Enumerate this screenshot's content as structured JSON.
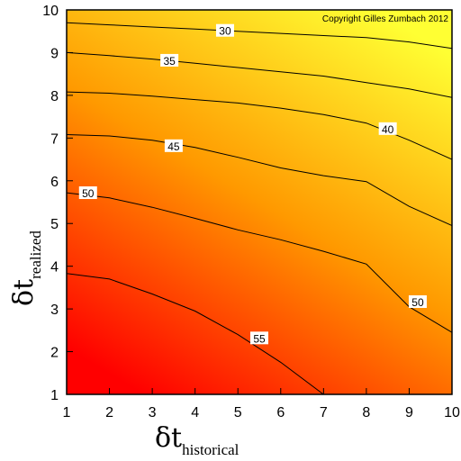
{
  "chart_data": {
    "type": "heatmap",
    "subtype": "contour",
    "copyright": "Copyright Gilles Zumbach 2012",
    "xlabel": {
      "symbol": "δt",
      "subscript": "historical"
    },
    "ylabel": {
      "symbol": "δt",
      "subscript": "realized"
    },
    "xlim": [
      1,
      10
    ],
    "ylim": [
      1,
      10
    ],
    "x_ticks": [
      "1",
      "2",
      "3",
      "4",
      "5",
      "6",
      "7",
      "8",
      "9",
      "10"
    ],
    "y_ticks": [
      "1",
      "2",
      "3",
      "4",
      "5",
      "6",
      "7",
      "8",
      "9",
      "10"
    ],
    "colorscale": {
      "low": "#ff0000",
      "mid": "#ff9900",
      "high": "#ffff33"
    },
    "contours": [
      {
        "level": "30",
        "points": [
          [
            1,
            9.7
          ],
          [
            2,
            9.65
          ],
          [
            3,
            9.6
          ],
          [
            4,
            9.55
          ],
          [
            5,
            9.5
          ],
          [
            6,
            9.45
          ],
          [
            7,
            9.4
          ],
          [
            8,
            9.35
          ],
          [
            9,
            9.25
          ],
          [
            10,
            9.1
          ]
        ],
        "label_at": [
          4.7,
          9.5
        ]
      },
      {
        "level": "35",
        "points": [
          [
            1,
            9.0
          ],
          [
            2,
            8.93
          ],
          [
            3,
            8.85
          ],
          [
            4,
            8.75
          ],
          [
            5,
            8.65
          ],
          [
            6,
            8.55
          ],
          [
            7,
            8.45
          ],
          [
            8,
            8.3
          ],
          [
            9,
            8.15
          ],
          [
            10,
            7.95
          ]
        ],
        "label_at": [
          3.4,
          8.8
        ]
      },
      {
        "level": "40",
        "points": [
          [
            1,
            8.08
          ],
          [
            2,
            8.05
          ],
          [
            3,
            7.98
          ],
          [
            4,
            7.9
          ],
          [
            5,
            7.82
          ],
          [
            6,
            7.7
          ],
          [
            7,
            7.55
          ],
          [
            8,
            7.35
          ],
          [
            9,
            6.95
          ],
          [
            10,
            6.5
          ]
        ],
        "label_at": [
          8.5,
          7.2
        ]
      },
      {
        "level": "45",
        "points": [
          [
            1,
            7.08
          ],
          [
            2,
            7.05
          ],
          [
            3,
            6.95
          ],
          [
            4,
            6.78
          ],
          [
            5,
            6.55
          ],
          [
            6,
            6.3
          ],
          [
            7,
            6.12
          ],
          [
            8,
            5.98
          ],
          [
            9,
            5.4
          ],
          [
            10,
            4.95
          ]
        ],
        "label_at": [
          3.5,
          6.8
        ]
      },
      {
        "level": "50",
        "points": [
          [
            1,
            5.72
          ],
          [
            2,
            5.6
          ],
          [
            3,
            5.38
          ],
          [
            4,
            5.12
          ],
          [
            5,
            4.85
          ],
          [
            6,
            4.62
          ],
          [
            7,
            4.35
          ],
          [
            8,
            4.05
          ],
          [
            9,
            3.05
          ],
          [
            10,
            2.45
          ]
        ],
        "label_at": [
          1.5,
          5.7
        ]
      },
      {
        "level": "50",
        "points": [],
        "label_at": [
          9.2,
          3.15
        ]
      },
      {
        "level": "55",
        "points": [
          [
            1,
            3.83
          ],
          [
            2,
            3.7
          ],
          [
            3,
            3.35
          ],
          [
            4,
            2.95
          ],
          [
            5,
            2.4
          ],
          [
            6,
            1.75
          ],
          [
            7,
            1.0
          ]
        ],
        "label_at": [
          5.5,
          2.3
        ]
      }
    ]
  }
}
